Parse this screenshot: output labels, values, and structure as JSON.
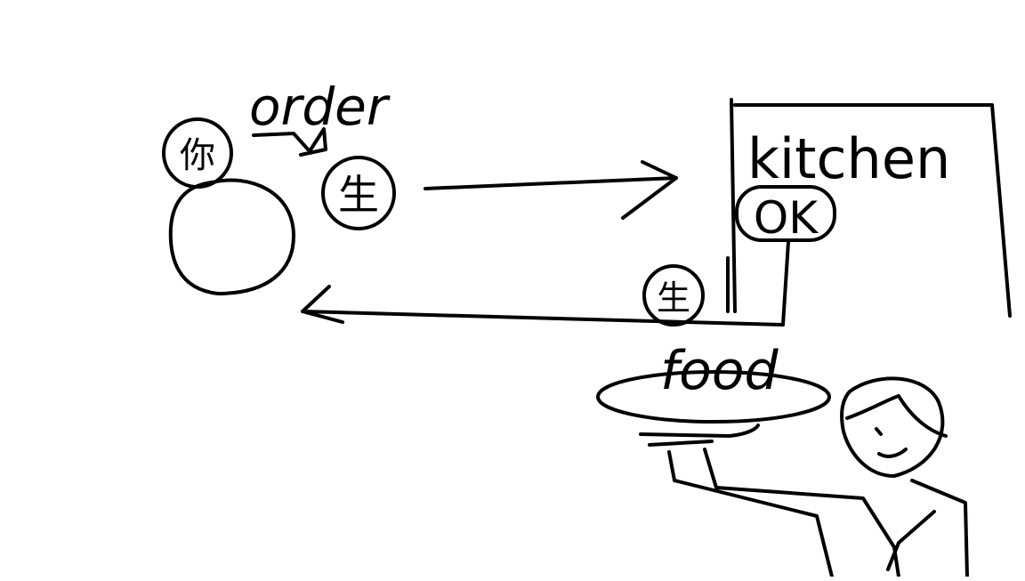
{
  "labels": {
    "order": "order",
    "kitchen": "kitchen",
    "food": "food",
    "ok": "OK"
  },
  "glyphs": {
    "customer_badge": "你",
    "order_token": "生",
    "food_token": "生"
  },
  "colors": {
    "ink": "#000000",
    "paper": "#ffffff"
  }
}
